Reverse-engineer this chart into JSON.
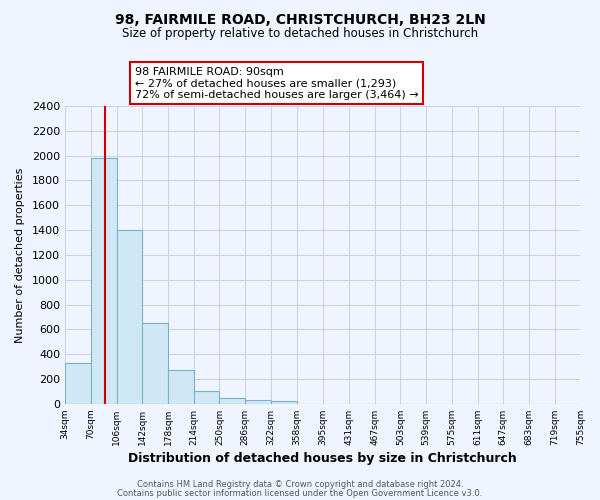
{
  "title": "98, FAIRMILE ROAD, CHRISTCHURCH, BH23 2LN",
  "subtitle": "Size of property relative to detached houses in Christchurch",
  "xlabel": "Distribution of detached houses by size in Christchurch",
  "ylabel": "Number of detached properties",
  "bin_edges": [
    34,
    70,
    106,
    142,
    178,
    214,
    250,
    286,
    322,
    358,
    395,
    431,
    467,
    503,
    539,
    575,
    611,
    647,
    683,
    719,
    755
  ],
  "bin_counts": [
    325,
    1980,
    1400,
    650,
    270,
    100,
    45,
    30,
    20,
    0,
    0,
    0,
    0,
    0,
    0,
    0,
    0,
    0,
    0,
    0
  ],
  "bar_color": "#d0e8f5",
  "bar_edge_color": "#7ab0cc",
  "property_line_x": 90,
  "property_line_color": "#cc0000",
  "annotation_text": "98 FAIRMILE ROAD: 90sqm\n← 27% of detached houses are smaller (1,293)\n72% of semi-detached houses are larger (3,464) →",
  "annotation_box_color": "#ffffff",
  "annotation_box_edge_color": "#cc0000",
  "ylim": [
    0,
    2400
  ],
  "yticks": [
    0,
    200,
    400,
    600,
    800,
    1000,
    1200,
    1400,
    1600,
    1800,
    2000,
    2200,
    2400
  ],
  "footer_line1": "Contains HM Land Registry data © Crown copyright and database right 2024.",
  "footer_line2": "Contains public sector information licensed under the Open Government Licence v3.0.",
  "tick_labels": [
    "34sqm",
    "70sqm",
    "106sqm",
    "142sqm",
    "178sqm",
    "214sqm",
    "250sqm",
    "286sqm",
    "322sqm",
    "358sqm",
    "395sqm",
    "431sqm",
    "467sqm",
    "503sqm",
    "539sqm",
    "575sqm",
    "611sqm",
    "647sqm",
    "683sqm",
    "719sqm",
    "755sqm"
  ],
  "background_color": "#f0f4ff",
  "grid_color": "#c8d0e8",
  "fig_width": 6.0,
  "fig_height": 5.0,
  "dpi": 100
}
